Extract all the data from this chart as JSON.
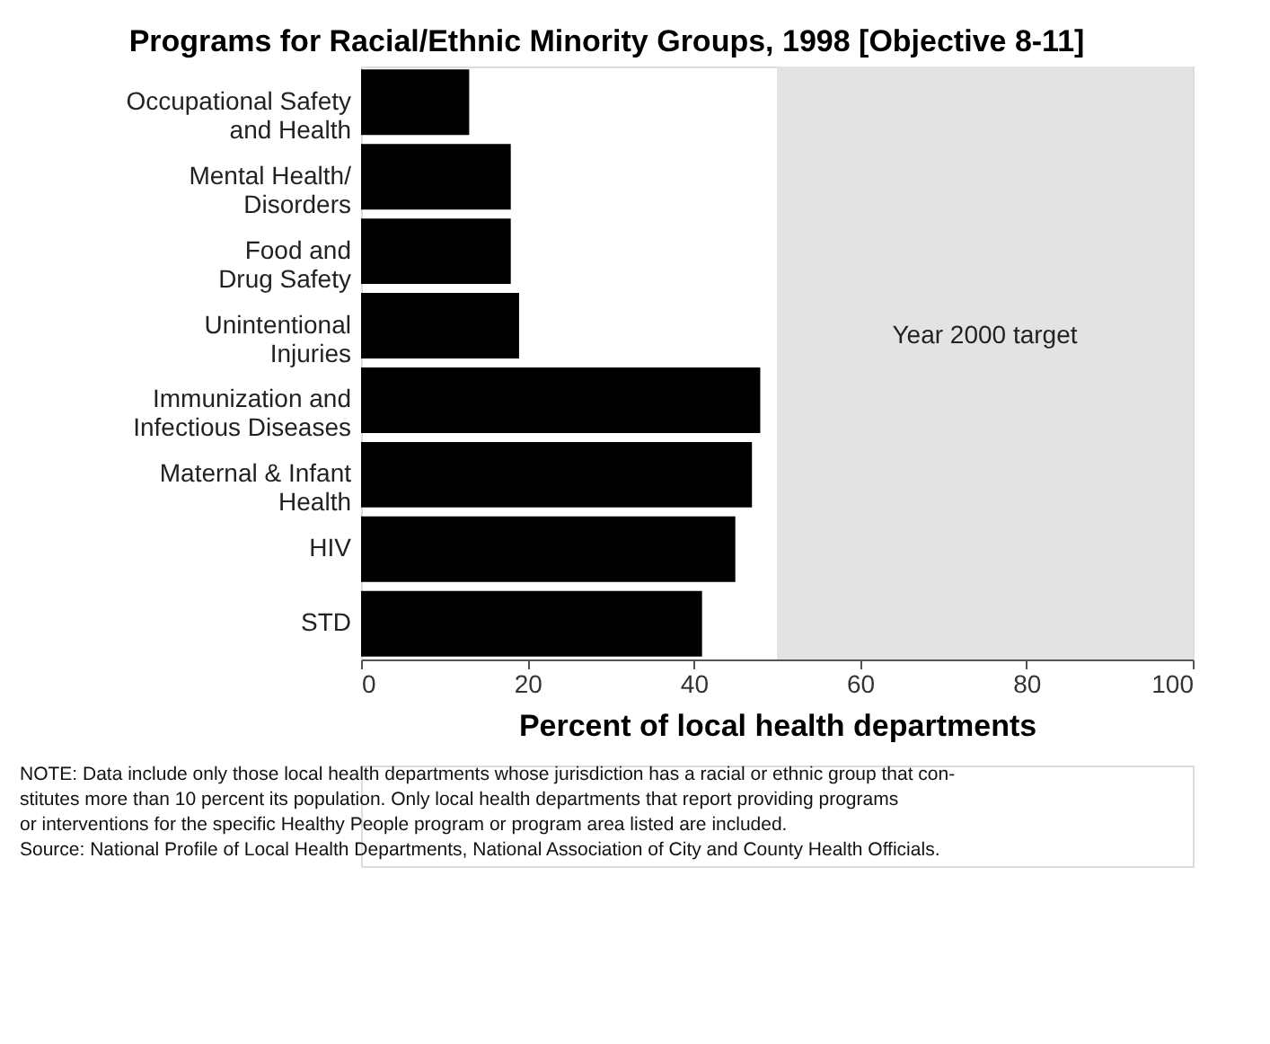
{
  "chart_data": {
    "type": "bar",
    "orientation": "horizontal",
    "title": "Programs for Racial/Ethnic Minority Groups, 1998 [Objective 8-11]",
    "xlabel": "Percent of local health departments",
    "categories": [
      "Occupational Safety\nand Health",
      "Mental Health/\nDisorders",
      "Food and\nDrug Safety",
      "Unintentional\nInjuries",
      "Immunization and\nInfectious Diseases",
      "Maternal & Infant\nHealth",
      "HIV",
      "STD"
    ],
    "values": [
      13,
      18,
      18,
      19,
      48,
      47,
      45,
      41
    ],
    "color": "#000000",
    "xlim": [
      0,
      100
    ],
    "xticks": [
      0,
      20,
      40,
      60,
      80,
      100
    ],
    "bands": [
      {
        "axis": "x",
        "from": 50,
        "to": 100,
        "label": "Year 2000 target",
        "color": "#e3e3e3"
      }
    ],
    "annotations": [
      "NOTE: Data include only those local health departments whose jurisdiction has a racial or ethnic group that con-\n     stitutes more than 10 percent its population. Only local health departments that report providing programs\n     or interventions for the specific Healthy People program or program area listed are included.",
      "Source: National Profile of Local Health Departments, National Association of City and County Health Officials."
    ]
  }
}
